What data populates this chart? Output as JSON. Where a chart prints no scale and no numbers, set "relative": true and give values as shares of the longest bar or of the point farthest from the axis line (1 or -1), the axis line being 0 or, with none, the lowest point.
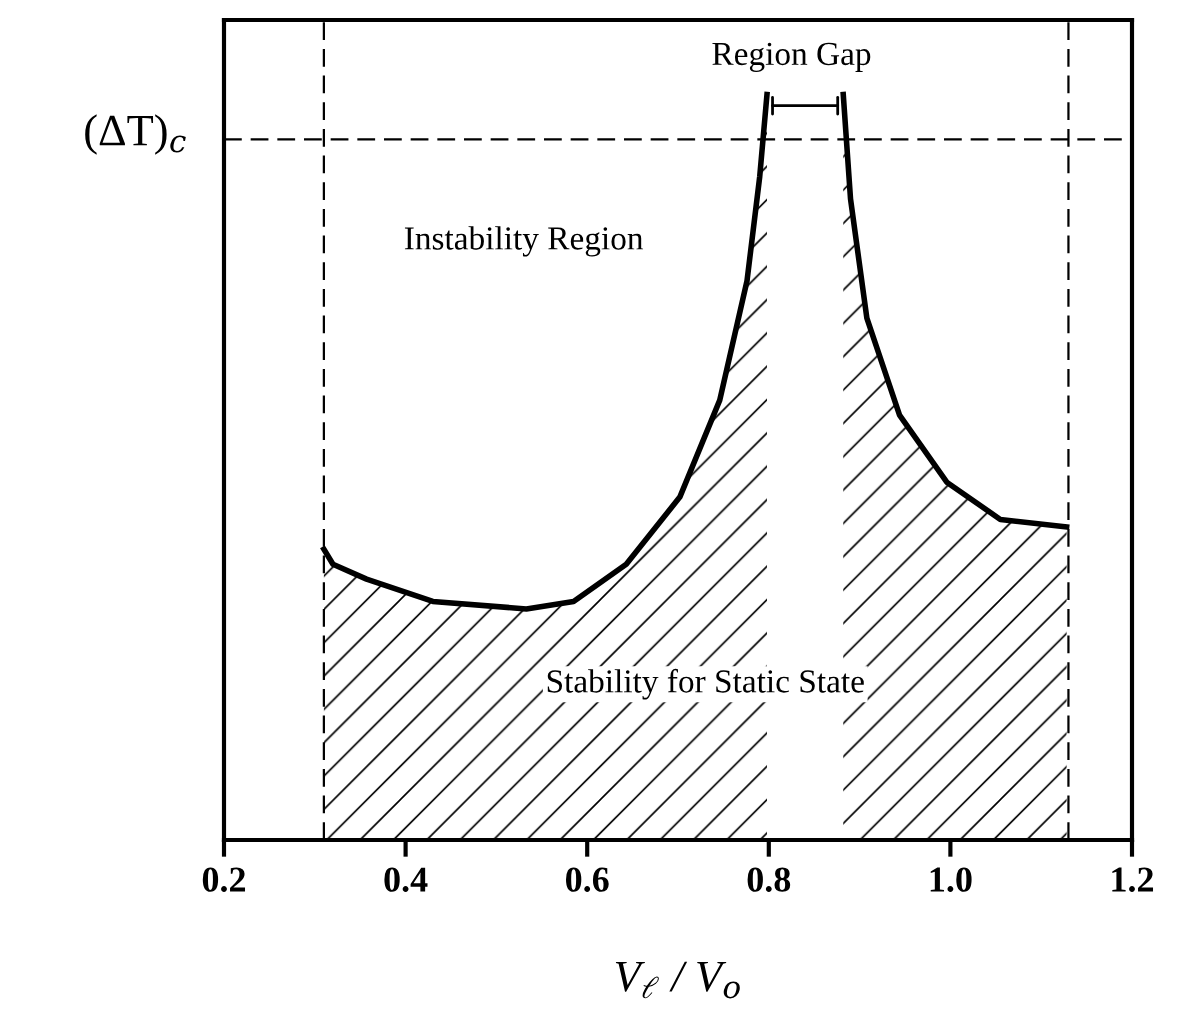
{
  "chart_data": {
    "type": "area",
    "relative": true,
    "xlabel": "V$_{ℓ}$ / V$_{o}$",
    "ylabel": "(ΔT)$_{c}$",
    "xlim": [
      0.2,
      1.2
    ],
    "xticks": [
      {
        "value": 0.2,
        "label": "0.2"
      },
      {
        "value": 0.4,
        "label": "0.4"
      },
      {
        "value": 0.6,
        "label": "0.6"
      },
      {
        "value": 0.8,
        "label": "0.8"
      },
      {
        "value": 1.0,
        "label": "1.0"
      },
      {
        "value": 1.2,
        "label": "1.2"
      }
    ],
    "tick_labels": "x",
    "grid": false,
    "series": [
      {
        "color": "#000000",
        "x": [
          0.31,
          0.32,
          0.357,
          0.43,
          0.533,
          0.585,
          0.643,
          0.702,
          0.746,
          0.776,
          0.79,
          0.798
        ],
        "values": [
          0.39,
          0.37,
          0.35,
          0.32,
          0.31,
          0.32,
          0.37,
          0.46,
          0.59,
          0.75,
          0.89,
          1.0
        ]
      },
      {
        "color": "#000000",
        "x": [
          0.882,
          0.89,
          0.908,
          0.944,
          0.996,
          1.055,
          1.128
        ],
        "values": [
          1.0,
          0.86,
          0.7,
          0.57,
          0.48,
          0.43,
          0.42
        ]
      }
    ],
    "ref_lines": [
      {
        "axis": "x",
        "value": 0.31,
        "line_style": "dashed"
      },
      {
        "axis": "x",
        "value": 1.13,
        "line_style": "dashed"
      },
      {
        "axis": "y",
        "value": 0.94,
        "line_style": "dashed"
      }
    ],
    "annotations": [
      "Region Gap",
      "Instability Region",
      "Stability for Static State"
    ]
  }
}
